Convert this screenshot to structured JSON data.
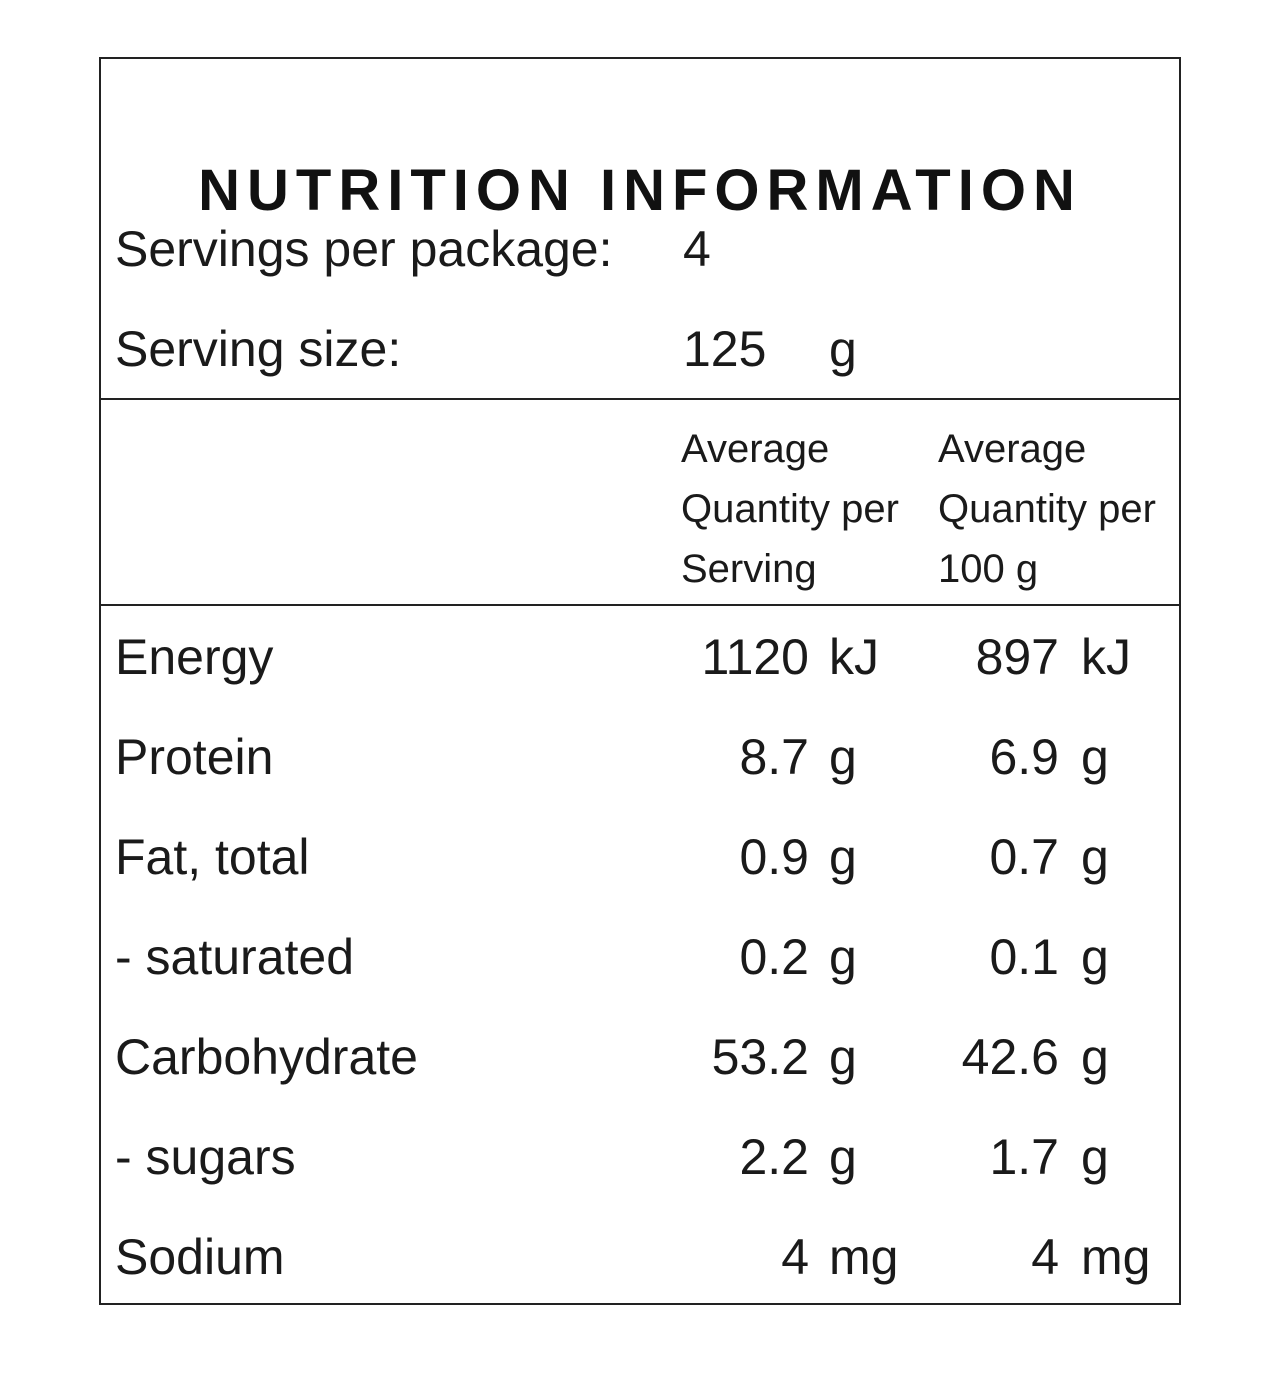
{
  "title": "NUTRITION INFORMATION",
  "servings_per_package": {
    "label": "Servings per package:",
    "value": "4"
  },
  "serving_size": {
    "label": "Serving size:",
    "value": "125",
    "unit": "g"
  },
  "columns": {
    "per_serving": [
      "Average",
      "Quantity per",
      "Serving"
    ],
    "per_100g": [
      "Average",
      "Quantity per",
      "100 g"
    ]
  },
  "nutrients": [
    {
      "name": "Energy",
      "per_serving": "1120",
      "per_serving_unit": "kJ",
      "per_100g": "897",
      "per_100g_unit": "kJ"
    },
    {
      "name": "Protein",
      "per_serving": "8.7",
      "per_serving_unit": "g",
      "per_100g": "6.9",
      "per_100g_unit": "g"
    },
    {
      "name": "Fat, total",
      "per_serving": "0.9",
      "per_serving_unit": "g",
      "per_100g": "0.7",
      "per_100g_unit": "g"
    },
    {
      "name": "- saturated",
      "per_serving": "0.2",
      "per_serving_unit": "g",
      "per_100g": "0.1",
      "per_100g_unit": "g"
    },
    {
      "name": "Carbohydrate",
      "per_serving": "53.2",
      "per_serving_unit": "g",
      "per_100g": "42.6",
      "per_100g_unit": "g"
    },
    {
      "name": "- sugars",
      "per_serving": "2.2",
      "per_serving_unit": "g",
      "per_100g": "1.7",
      "per_100g_unit": "g"
    },
    {
      "name": "Sodium",
      "per_serving": "4",
      "per_serving_unit": "mg",
      "per_100g": "4",
      "per_100g_unit": "mg"
    }
  ]
}
